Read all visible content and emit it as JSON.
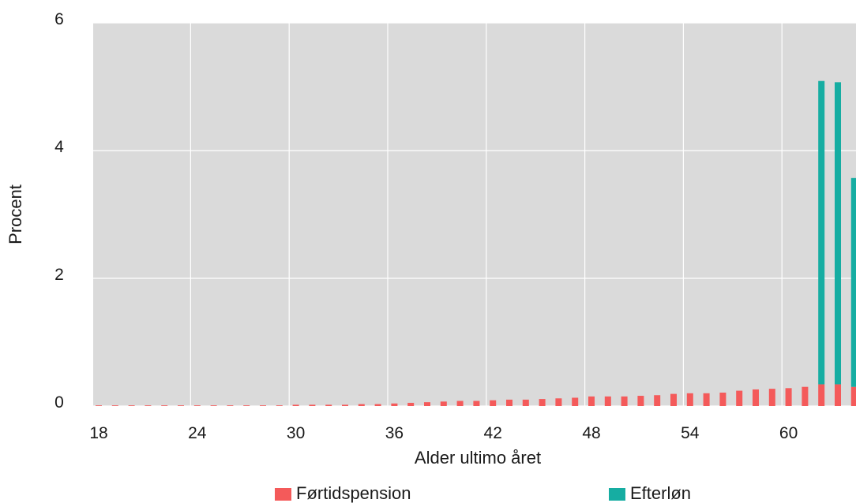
{
  "chart_data": {
    "type": "bar",
    "stacked": true,
    "xlabel": "Alder ultimo året",
    "ylabel": "Procent",
    "ylim": [
      0,
      6
    ],
    "yticks": [
      "0",
      "2",
      "4",
      "6"
    ],
    "xticks": [
      "18",
      "24",
      "30",
      "36",
      "42",
      "48",
      "54",
      "60"
    ],
    "grid": true,
    "legend_position": "bottom",
    "colors": {
      "plot_background": "#dadada",
      "grid": "#ffffff",
      "fortidspension": "#f45a5a",
      "efterlon": "#16ada2"
    },
    "categories": [
      18,
      19,
      20,
      21,
      22,
      23,
      24,
      25,
      26,
      27,
      28,
      29,
      30,
      31,
      32,
      33,
      34,
      35,
      36,
      37,
      38,
      39,
      40,
      41,
      42,
      43,
      44,
      45,
      46,
      47,
      48,
      49,
      50,
      51,
      52,
      53,
      54,
      55,
      56,
      57,
      58,
      59,
      60,
      61,
      62,
      63,
      64
    ],
    "series": [
      {
        "name": "Førtidspension",
        "color": "#f45a5a",
        "values": [
          0.01,
          0.01,
          0.01,
          0.01,
          0.01,
          0.01,
          0.01,
          0.01,
          0.01,
          0.01,
          0.01,
          0.01,
          0.02,
          0.02,
          0.02,
          0.02,
          0.03,
          0.03,
          0.04,
          0.05,
          0.06,
          0.07,
          0.08,
          0.08,
          0.09,
          0.1,
          0.1,
          0.11,
          0.12,
          0.13,
          0.15,
          0.15,
          0.15,
          0.16,
          0.17,
          0.19,
          0.2,
          0.2,
          0.21,
          0.24,
          0.26,
          0.27,
          0.28,
          0.3,
          0.34,
          0.34,
          0.3
        ]
      },
      {
        "name": "Efterløn",
        "color": "#16ada2",
        "values": [
          0,
          0,
          0,
          0,
          0,
          0,
          0,
          0,
          0,
          0,
          0,
          0,
          0,
          0,
          0,
          0,
          0,
          0,
          0,
          0,
          0,
          0,
          0,
          0,
          0,
          0,
          0,
          0,
          0,
          0,
          0,
          0,
          0,
          0,
          0,
          0,
          0,
          0,
          0,
          0,
          0,
          0,
          0,
          0,
          4.75,
          4.73,
          3.27
        ]
      }
    ]
  }
}
